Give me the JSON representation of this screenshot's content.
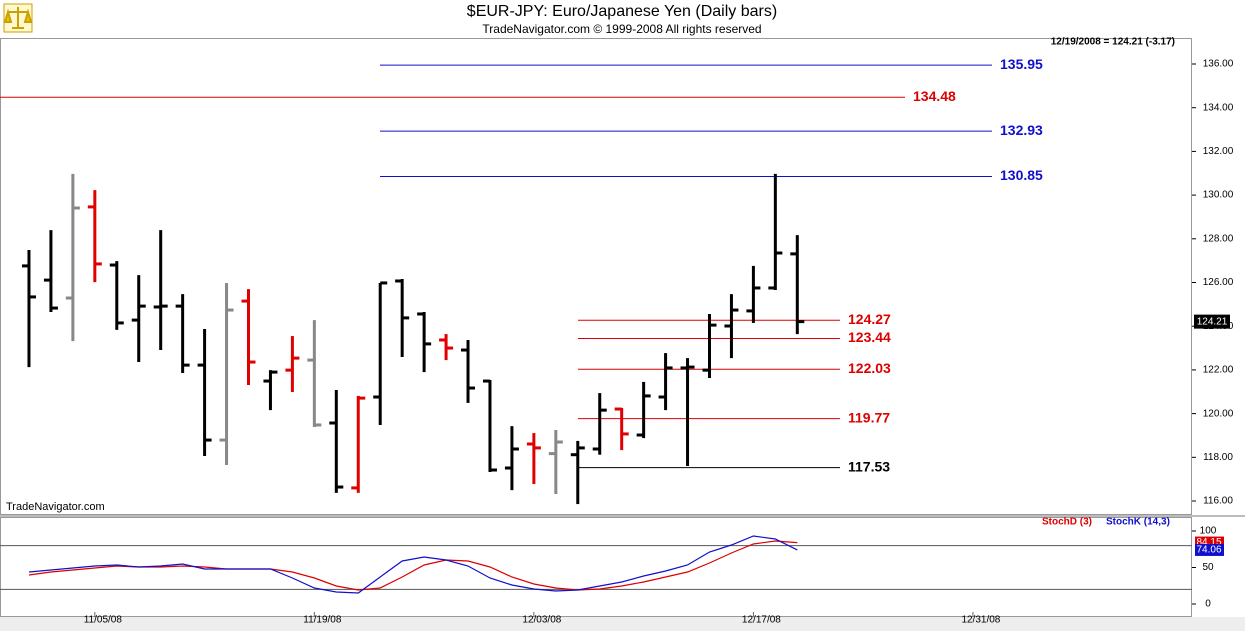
{
  "chart_data": [
    {
      "type": "ohlc",
      "title": "$EUR-JPY:  Euro/Japanese Yen  (Daily bars)",
      "subtitle": "TradeNavigator.com © 1999-2008 All rights reserved",
      "header_note": "12/19/2008 = 124.21 (-3.17)",
      "watermark": "TradeNavigator.com",
      "categories": [
        null,
        null,
        null,
        null,
        null,
        null,
        null,
        null,
        null,
        null,
        null,
        null,
        null,
        null,
        null,
        null,
        null,
        null,
        null,
        null,
        null,
        null,
        null,
        null,
        null,
        null,
        null,
        null,
        null,
        null,
        null,
        null,
        null,
        null,
        null,
        null
      ],
      "xlim": [
        -1.32,
        52.98
      ],
      "xticks": [
        {
          "value": 3,
          "label": "11/05/08"
        },
        {
          "value": 13,
          "label": "11/19/08"
        },
        {
          "value": 23,
          "label": "12/03/08"
        },
        {
          "value": 33,
          "label": "12/17/08"
        },
        {
          "value": 43,
          "label": "12/31/08"
        }
      ],
      "open": [
        126.76,
        126.11,
        125.29,
        129.46,
        126.8,
        124.28,
        124.88,
        124.92,
        122.22,
        118.79,
        125.15,
        121.49,
        121.99,
        122.45,
        119.57,
        116.6,
        120.76,
        126.07,
        124.56,
        123.37,
        122.91,
        121.49,
        117.51,
        118.61,
        118.17,
        118.12,
        118.38,
        120.21,
        119.02,
        120.76,
        122.09,
        121.99,
        124.01,
        124.7,
        125.75,
        127.31
      ],
      "high": [
        127.49,
        128.4,
        130.97,
        130.23,
        126.98,
        126.34,
        128.4,
        125.47,
        123.87,
        125.98,
        125.7,
        121.99,
        123.55,
        124.28,
        121.08,
        120.81,
        125.98,
        126.16,
        124.65,
        123.64,
        123.37,
        121.54,
        119.43,
        119.11,
        119.25,
        118.75,
        120.94,
        120.26,
        121.45,
        122.77,
        122.54,
        124.56,
        125.47,
        126.76,
        130.97,
        128.17
      ],
      "low": [
        122.13,
        124.65,
        123.32,
        126.02,
        123.83,
        122.36,
        122.91,
        121.86,
        118.06,
        117.65,
        121.31,
        120.16,
        120.99,
        119.39,
        116.37,
        116.37,
        119.48,
        122.59,
        121.9,
        122.45,
        120.49,
        117.33,
        116.5,
        116.78,
        116.32,
        115.86,
        118.12,
        118.33,
        118.88,
        120.16,
        117.6,
        121.63,
        122.54,
        124.15,
        125.66,
        123.64
      ],
      "close": [
        125.34,
        124.83,
        129.41,
        126.85,
        124.15,
        124.92,
        124.92,
        122.22,
        118.79,
        124.74,
        122.36,
        121.9,
        122.54,
        119.48,
        116.64,
        120.71,
        125.98,
        124.38,
        123.19,
        123.0,
        121.17,
        117.42,
        118.38,
        118.43,
        118.7,
        118.43,
        120.16,
        119.07,
        120.81,
        122.09,
        122.13,
        124.05,
        124.74,
        125.75,
        127.35,
        124.21
      ],
      "bar_colors": [
        "#000000",
        "#000000",
        "#888888",
        "#e00000",
        "#000000",
        "#000000",
        "#000000",
        "#000000",
        "#000000",
        "#888888",
        "#e00000",
        "#000000",
        "#e00000",
        "#888888",
        "#000000",
        "#e00000",
        "#000000",
        "#000000",
        "#000000",
        "#e00000",
        "#000000",
        "#000000",
        "#000000",
        "#e00000",
        "#888888",
        "#000000",
        "#000000",
        "#e00000",
        "#000000",
        "#000000",
        "#000000",
        "#000000",
        "#000000",
        "#000000",
        "#000000",
        "#000000"
      ],
      "levels": [
        {
          "value": 135.95,
          "color": "#1010cc"
        },
        {
          "value": 134.48,
          "color": "#dd0000"
        },
        {
          "value": 132.93,
          "color": "#1010cc"
        },
        {
          "value": 130.85,
          "color": "#1010cc"
        },
        {
          "value": 124.27,
          "color": "#dd0000"
        },
        {
          "value": 123.44,
          "color": "#dd0000"
        },
        {
          "value": 122.03,
          "color": "#dd0000"
        },
        {
          "value": 119.77,
          "color": "#dd0000"
        },
        {
          "value": 117.53,
          "color": "#000000"
        }
      ],
      "ylim": [
        115.36,
        137.19
      ],
      "yticks": [
        {
          "value": 116,
          "label": "116.00"
        },
        {
          "value": 118,
          "label": "118.00"
        },
        {
          "value": 120,
          "label": "120.00"
        },
        {
          "value": 122,
          "label": "122.00"
        },
        {
          "value": 124,
          "label": "124.00"
        },
        {
          "value": 126,
          "label": "126.00"
        },
        {
          "value": 128,
          "label": "128.00"
        },
        {
          "value": 130,
          "label": "130.00"
        },
        {
          "value": 132,
          "label": "132.00"
        },
        {
          "value": 134,
          "label": "134.00"
        },
        {
          "value": 136,
          "label": "136.00"
        }
      ]
    },
    {
      "type": "line",
      "series": [
        {
          "name": "StochD (3)",
          "color": "#dd0000",
          "values": [
            39.7,
            43.8,
            46.6,
            49.3,
            52.1,
            50.7,
            50.7,
            52.1,
            50.7,
            47.9,
            47.9,
            47.9,
            43.8,
            35.6,
            24.7,
            19.2,
            21.9,
            37.0,
            53.4,
            60.3,
            58.9,
            50.7,
            37.0,
            27.4,
            21.9,
            19.2,
            20.5,
            24.7,
            30.1,
            37.0,
            43.8,
            56.2,
            69.9,
            82.2,
            86.3,
            84.15
          ]
        },
        {
          "name": "StochK (14,3)",
          "color": "#1010cc",
          "values": [
            43.8,
            46.6,
            49.3,
            52.1,
            53.4,
            50.7,
            52.1,
            54.8,
            47.9,
            47.9,
            47.9,
            47.9,
            35.6,
            21.9,
            16.4,
            15.1,
            37.0,
            58.9,
            64.4,
            60.3,
            52.1,
            35.6,
            26.0,
            20.5,
            17.8,
            19.2,
            24.7,
            30.1,
            38.4,
            45.2,
            53.4,
            71.2,
            80.8,
            93.2,
            89.0,
            74.06
          ]
        }
      ],
      "reference_lines": [
        80,
        20
      ],
      "ylim": [
        -17.81,
        119.18
      ],
      "yticks": [
        0,
        50,
        100
      ]
    }
  ]
}
